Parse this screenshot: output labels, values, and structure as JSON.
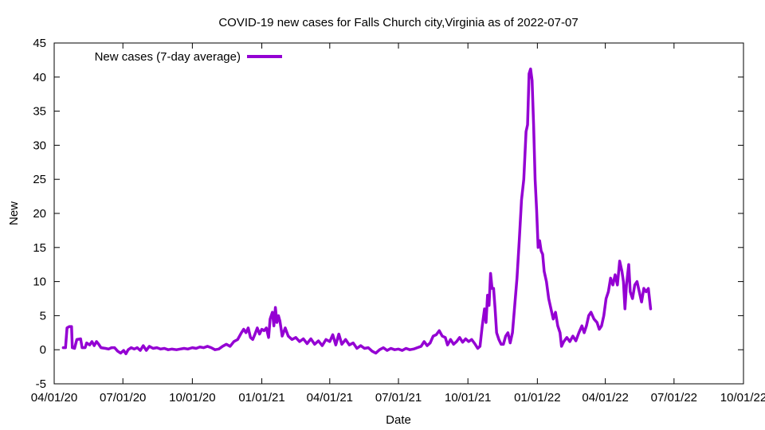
{
  "chart_data": {
    "type": "line",
    "title": "COVID-19 new cases for Falls Church city,Virginia as of 2022-07-07",
    "xlabel": "Date",
    "ylabel": "New",
    "ylim": [
      -5,
      45
    ],
    "yticks": [
      -5,
      0,
      5,
      10,
      15,
      20,
      25,
      30,
      35,
      40,
      45
    ],
    "xlim": [
      "2020-04-01",
      "2022-10-01"
    ],
    "xticks": [
      {
        "date": "2020-04-01",
        "label": "04/01/20"
      },
      {
        "date": "2020-07-01",
        "label": "07/01/20"
      },
      {
        "date": "2020-10-01",
        "label": "10/01/20"
      },
      {
        "date": "2021-01-01",
        "label": "01/01/21"
      },
      {
        "date": "2021-04-01",
        "label": "04/01/21"
      },
      {
        "date": "2021-07-01",
        "label": "07/01/21"
      },
      {
        "date": "2021-10-01",
        "label": "10/01/21"
      },
      {
        "date": "2022-01-01",
        "label": "01/01/22"
      },
      {
        "date": "2022-04-01",
        "label": "04/01/22"
      },
      {
        "date": "2022-07-01",
        "label": "07/01/22"
      },
      {
        "date": "2022-10-01",
        "label": "10/01/22"
      }
    ],
    "grid": false,
    "legend_position": "top-left",
    "series": [
      {
        "name": "New cases (7-day average)",
        "color": "#9400d3",
        "points": [
          [
            "2020-04-13",
            0.3
          ],
          [
            "2020-04-16",
            0.3
          ],
          [
            "2020-04-18",
            3.2
          ],
          [
            "2020-04-21",
            3.4
          ],
          [
            "2020-04-24",
            3.4
          ],
          [
            "2020-04-25",
            0.3
          ],
          [
            "2020-04-28",
            0.2
          ],
          [
            "2020-05-01",
            1.5
          ],
          [
            "2020-05-06",
            1.6
          ],
          [
            "2020-05-08",
            0.3
          ],
          [
            "2020-05-12",
            0.3
          ],
          [
            "2020-05-14",
            1.0
          ],
          [
            "2020-05-18",
            0.7
          ],
          [
            "2020-05-21",
            1.2
          ],
          [
            "2020-05-24",
            0.6
          ],
          [
            "2020-05-27",
            1.2
          ],
          [
            "2020-05-30",
            0.8
          ],
          [
            "2020-06-02",
            0.3
          ],
          [
            "2020-06-08",
            0.2
          ],
          [
            "2020-06-12",
            0.1
          ],
          [
            "2020-06-16",
            0.3
          ],
          [
            "2020-06-20",
            0.3
          ],
          [
            "2020-06-24",
            -0.2
          ],
          [
            "2020-06-28",
            -0.5
          ],
          [
            "2020-07-02",
            -0.1
          ],
          [
            "2020-07-05",
            -0.6
          ],
          [
            "2020-07-08",
            0.0
          ],
          [
            "2020-07-12",
            0.3
          ],
          [
            "2020-07-16",
            0.1
          ],
          [
            "2020-07-20",
            0.3
          ],
          [
            "2020-07-24",
            -0.1
          ],
          [
            "2020-07-28",
            0.6
          ],
          [
            "2020-08-01",
            -0.1
          ],
          [
            "2020-08-05",
            0.5
          ],
          [
            "2020-08-10",
            0.2
          ],
          [
            "2020-08-15",
            0.3
          ],
          [
            "2020-08-20",
            0.1
          ],
          [
            "2020-08-25",
            0.2
          ],
          [
            "2020-08-30",
            0.0
          ],
          [
            "2020-09-04",
            0.1
          ],
          [
            "2020-09-10",
            0.0
          ],
          [
            "2020-09-15",
            0.1
          ],
          [
            "2020-09-20",
            0.2
          ],
          [
            "2020-09-25",
            0.1
          ],
          [
            "2020-10-01",
            0.3
          ],
          [
            "2020-10-06",
            0.2
          ],
          [
            "2020-10-11",
            0.4
          ],
          [
            "2020-10-16",
            0.3
          ],
          [
            "2020-10-21",
            0.5
          ],
          [
            "2020-10-26",
            0.3
          ],
          [
            "2020-10-31",
            0.0
          ],
          [
            "2020-11-05",
            0.1
          ],
          [
            "2020-11-10",
            0.5
          ],
          [
            "2020-11-15",
            0.8
          ],
          [
            "2020-11-20",
            0.5
          ],
          [
            "2020-11-25",
            1.2
          ],
          [
            "2020-11-30",
            1.5
          ],
          [
            "2020-12-05",
            2.5
          ],
          [
            "2020-12-08",
            3.0
          ],
          [
            "2020-12-11",
            2.5
          ],
          [
            "2020-12-14",
            3.2
          ],
          [
            "2020-12-17",
            1.8
          ],
          [
            "2020-12-20",
            1.5
          ],
          [
            "2020-12-23",
            2.3
          ],
          [
            "2020-12-26",
            3.2
          ],
          [
            "2020-12-29",
            2.3
          ],
          [
            "2021-01-01",
            3.0
          ],
          [
            "2021-01-04",
            2.8
          ],
          [
            "2021-01-07",
            3.2
          ],
          [
            "2021-01-10",
            1.8
          ],
          [
            "2021-01-12",
            4.5
          ],
          [
            "2021-01-15",
            5.5
          ],
          [
            "2021-01-17",
            3.5
          ],
          [
            "2021-01-19",
            6.2
          ],
          [
            "2021-01-21",
            4.0
          ],
          [
            "2021-01-23",
            5.0
          ],
          [
            "2021-01-25",
            4.2
          ],
          [
            "2021-01-28",
            2.0
          ],
          [
            "2021-02-01",
            3.2
          ],
          [
            "2021-02-05",
            2.0
          ],
          [
            "2021-02-10",
            1.5
          ],
          [
            "2021-02-15",
            1.8
          ],
          [
            "2021-02-20",
            1.2
          ],
          [
            "2021-02-25",
            1.6
          ],
          [
            "2021-03-02",
            0.9
          ],
          [
            "2021-03-07",
            1.6
          ],
          [
            "2021-03-12",
            0.8
          ],
          [
            "2021-03-17",
            1.3
          ],
          [
            "2021-03-22",
            0.6
          ],
          [
            "2021-03-27",
            1.5
          ],
          [
            "2021-04-01",
            1.2
          ],
          [
            "2021-04-05",
            2.2
          ],
          [
            "2021-04-09",
            0.7
          ],
          [
            "2021-04-13",
            2.3
          ],
          [
            "2021-04-17",
            0.8
          ],
          [
            "2021-04-22",
            1.5
          ],
          [
            "2021-04-27",
            0.7
          ],
          [
            "2021-05-02",
            1.0
          ],
          [
            "2021-05-07",
            0.2
          ],
          [
            "2021-05-12",
            0.6
          ],
          [
            "2021-05-17",
            0.2
          ],
          [
            "2021-05-22",
            0.3
          ],
          [
            "2021-05-27",
            -0.2
          ],
          [
            "2021-06-01",
            -0.5
          ],
          [
            "2021-06-06",
            0.0
          ],
          [
            "2021-06-11",
            0.3
          ],
          [
            "2021-06-16",
            -0.1
          ],
          [
            "2021-06-21",
            0.2
          ],
          [
            "2021-06-26",
            0.0
          ],
          [
            "2021-07-01",
            0.1
          ],
          [
            "2021-07-06",
            -0.1
          ],
          [
            "2021-07-11",
            0.2
          ],
          [
            "2021-07-16",
            0.0
          ],
          [
            "2021-07-21",
            0.1
          ],
          [
            "2021-07-26",
            0.3
          ],
          [
            "2021-07-31",
            0.5
          ],
          [
            "2021-08-04",
            1.2
          ],
          [
            "2021-08-08",
            0.6
          ],
          [
            "2021-08-12",
            1.0
          ],
          [
            "2021-08-16",
            2.0
          ],
          [
            "2021-08-20",
            2.2
          ],
          [
            "2021-08-24",
            2.8
          ],
          [
            "2021-08-28",
            2.0
          ],
          [
            "2021-09-01",
            1.8
          ],
          [
            "2021-09-04",
            0.7
          ],
          [
            "2021-09-08",
            1.5
          ],
          [
            "2021-09-12",
            0.8
          ],
          [
            "2021-09-16",
            1.2
          ],
          [
            "2021-09-20",
            1.8
          ],
          [
            "2021-09-24",
            1.1
          ],
          [
            "2021-09-28",
            1.6
          ],
          [
            "2021-10-02",
            1.2
          ],
          [
            "2021-10-06",
            1.5
          ],
          [
            "2021-10-10",
            0.9
          ],
          [
            "2021-10-14",
            0.2
          ],
          [
            "2021-10-17",
            0.5
          ],
          [
            "2021-10-20",
            3.5
          ],
          [
            "2021-10-23",
            6.0
          ],
          [
            "2021-10-25",
            4.0
          ],
          [
            "2021-10-27",
            8.0
          ],
          [
            "2021-10-29",
            6.5
          ],
          [
            "2021-10-31",
            11.2
          ],
          [
            "2021-11-02",
            9.0
          ],
          [
            "2021-11-04",
            9.0
          ],
          [
            "2021-11-06",
            6.0
          ],
          [
            "2021-11-08",
            2.5
          ],
          [
            "2021-11-11",
            1.5
          ],
          [
            "2021-11-14",
            0.8
          ],
          [
            "2021-11-17",
            0.8
          ],
          [
            "2021-11-20",
            2.0
          ],
          [
            "2021-11-23",
            2.5
          ],
          [
            "2021-11-26",
            1.0
          ],
          [
            "2021-11-29",
            2.5
          ],
          [
            "2021-12-02",
            6.5
          ],
          [
            "2021-12-05",
            10.5
          ],
          [
            "2021-12-08",
            16.0
          ],
          [
            "2021-12-11",
            22.0
          ],
          [
            "2021-12-14",
            25.0
          ],
          [
            "2021-12-17",
            32.0
          ],
          [
            "2021-12-19",
            33.0
          ],
          [
            "2021-12-21",
            40.5
          ],
          [
            "2021-12-23",
            41.2
          ],
          [
            "2021-12-25",
            39.5
          ],
          [
            "2021-12-27",
            33.0
          ],
          [
            "2021-12-29",
            25.0
          ],
          [
            "2021-12-31",
            20.5
          ],
          [
            "2022-01-02",
            15.0
          ],
          [
            "2022-01-04",
            16.0
          ],
          [
            "2022-01-06",
            14.5
          ],
          [
            "2022-01-08",
            14.0
          ],
          [
            "2022-01-10",
            11.5
          ],
          [
            "2022-01-13",
            10.0
          ],
          [
            "2022-01-16",
            7.5
          ],
          [
            "2022-01-19",
            6.0
          ],
          [
            "2022-01-22",
            4.5
          ],
          [
            "2022-01-25",
            5.5
          ],
          [
            "2022-01-28",
            3.5
          ],
          [
            "2022-01-31",
            2.5
          ],
          [
            "2022-02-02",
            0.5
          ],
          [
            "2022-02-05",
            1.2
          ],
          [
            "2022-02-09",
            1.8
          ],
          [
            "2022-02-13",
            1.2
          ],
          [
            "2022-02-17",
            2.0
          ],
          [
            "2022-02-21",
            1.3
          ],
          [
            "2022-02-25",
            2.5
          ],
          [
            "2022-03-01",
            3.5
          ],
          [
            "2022-03-04",
            2.5
          ],
          [
            "2022-03-07",
            3.5
          ],
          [
            "2022-03-10",
            5.0
          ],
          [
            "2022-03-13",
            5.5
          ],
          [
            "2022-03-17",
            4.5
          ],
          [
            "2022-03-21",
            4.0
          ],
          [
            "2022-03-24",
            3.0
          ],
          [
            "2022-03-27",
            3.5
          ],
          [
            "2022-03-30",
            5.0
          ],
          [
            "2022-04-02",
            7.5
          ],
          [
            "2022-04-05",
            8.5
          ],
          [
            "2022-04-08",
            10.5
          ],
          [
            "2022-04-11",
            9.5
          ],
          [
            "2022-04-14",
            11.0
          ],
          [
            "2022-04-17",
            9.5
          ],
          [
            "2022-04-20",
            13.0
          ],
          [
            "2022-04-23",
            11.5
          ],
          [
            "2022-04-25",
            10.0
          ],
          [
            "2022-04-27",
            6.0
          ],
          [
            "2022-04-29",
            9.5
          ],
          [
            "2022-05-02",
            12.5
          ],
          [
            "2022-05-04",
            8.5
          ],
          [
            "2022-05-07",
            7.5
          ],
          [
            "2022-05-10",
            9.5
          ],
          [
            "2022-05-13",
            10.0
          ],
          [
            "2022-05-16",
            8.5
          ],
          [
            "2022-05-19",
            7.0
          ],
          [
            "2022-05-22",
            9.0
          ],
          [
            "2022-05-25",
            8.5
          ],
          [
            "2022-05-28",
            9.0
          ],
          [
            "2022-05-31",
            6.0
          ]
        ]
      }
    ]
  }
}
